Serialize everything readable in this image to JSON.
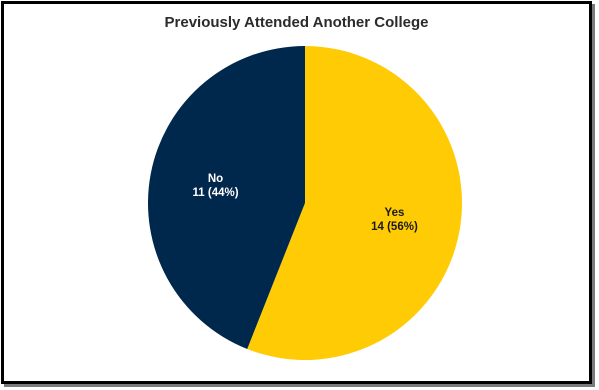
{
  "chart_data": {
    "type": "pie",
    "title": "Previously Attended Another College",
    "slices": [
      {
        "label": "Yes",
        "value": 14,
        "value_label": "14 (56%)",
        "color": "#FFCB05",
        "text_color": "#1a1a1a"
      },
      {
        "label": "No",
        "value": 11,
        "value_label": "11 (44%)",
        "color": "#00274C",
        "text_color": "#ffffff"
      }
    ],
    "start_angle": "12 o'clock",
    "direction": "clockwise",
    "legend": "none"
  }
}
